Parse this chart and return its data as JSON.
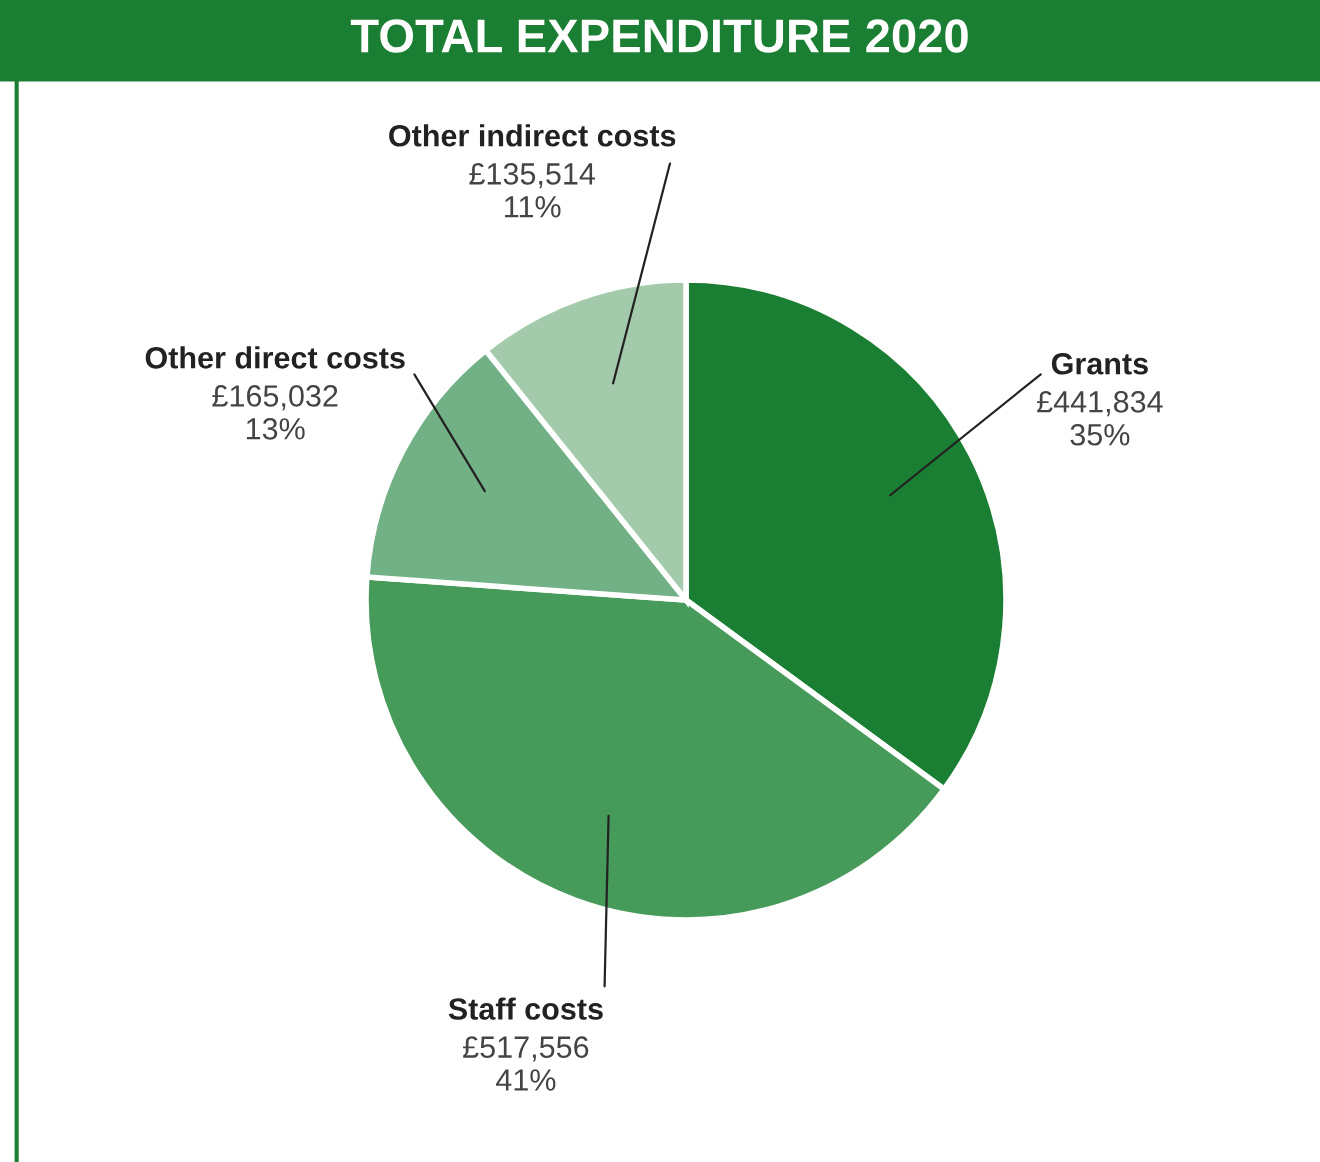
{
  "chart_data": {
    "type": "pie",
    "title": "TOTAL EXPENDITURE 2020",
    "categories": [
      "Grants",
      "Staff costs",
      "Other direct costs",
      "Other indirect costs"
    ],
    "values": [
      441834,
      517556,
      165032,
      135514
    ],
    "colors": [
      "#1a7f32",
      "#469a5a",
      "#72b086",
      "#a3cbab"
    ],
    "value_labels": [
      "£441,834\n35%",
      "£517,556\n41%",
      "£165,032\n13%",
      "£135,514\n11%"
    ],
    "legend": false
  }
}
